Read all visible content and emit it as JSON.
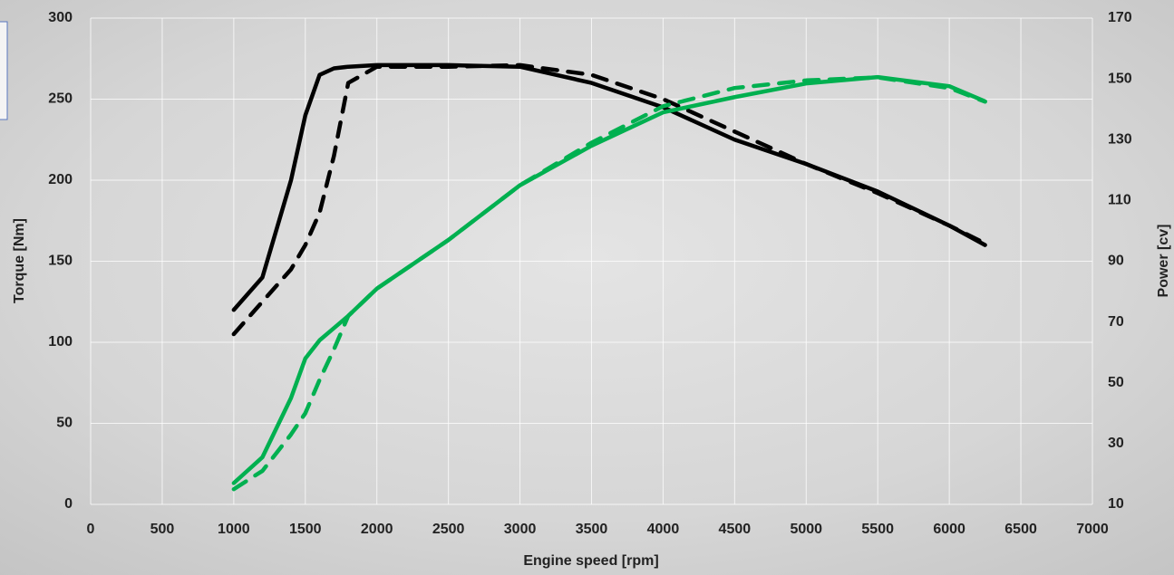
{
  "chart_data": {
    "type": "line",
    "x_label": "Engine speed [rpm]",
    "y_label": "Torque [Nm]",
    "y2_label": "Power [cv]",
    "x": [
      1000,
      1200,
      1400,
      1500,
      1600,
      1700,
      1800,
      2000,
      2500,
      3000,
      3500,
      4000,
      4500,
      5000,
      5500,
      6000,
      6250
    ],
    "series": [
      {
        "color": "#000000",
        "dashed": false,
        "values": [
          120,
          140,
          200,
          240,
          265,
          269,
          270,
          271,
          271,
          270,
          260,
          245,
          225,
          210,
          193,
          172,
          160
        ]
      },
      {
        "color": "#000000",
        "dashed": true,
        "values": [
          105,
          125,
          145,
          160,
          180,
          215,
          260,
          270,
          270,
          271,
          265,
          250,
          230,
          210,
          192,
          172,
          161
        ]
      },
      {
        "color": "#00b050",
        "dashed": false,
        "axis": "y2",
        "values": [
          17,
          25.5,
          45,
          58,
          64,
          68,
          72,
          81,
          97,
          115,
          128,
          139,
          144,
          148.5,
          150.6,
          147.6,
          142.6
        ]
      },
      {
        "color": "#00b050",
        "dashed": true,
        "axis": "y2",
        "values": [
          15,
          21,
          33,
          40,
          51,
          61,
          72,
          81,
          97,
          115,
          129,
          141,
          147,
          149.5,
          150.5,
          147,
          142.5
        ]
      }
    ],
    "xlim": [
      0,
      7000
    ],
    "xticks": [
      0,
      500,
      1000,
      1500,
      2000,
      2500,
      3000,
      3500,
      4000,
      4500,
      5000,
      5500,
      6000,
      6500,
      7000
    ],
    "ylim": [
      0,
      300
    ],
    "yticks": [
      0,
      50,
      100,
      150,
      200,
      250,
      300
    ],
    "y2lim": [
      10,
      170
    ],
    "y2ticks": [
      10,
      30,
      50,
      70,
      90,
      110,
      130,
      150,
      170
    ],
    "grid": true
  }
}
